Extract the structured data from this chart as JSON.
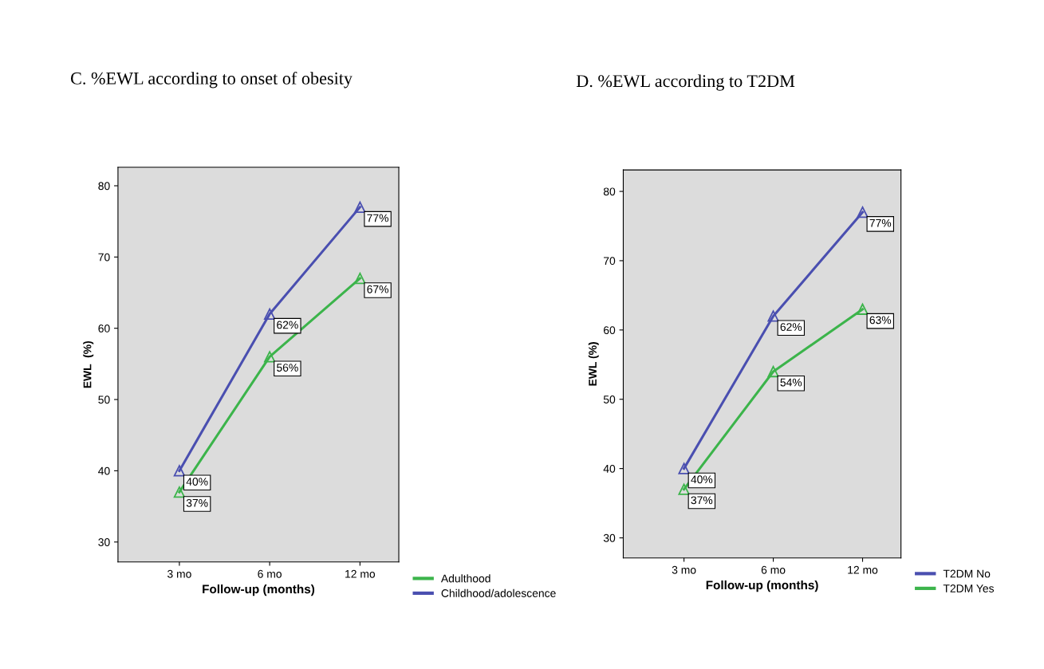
{
  "chart_data": [
    {
      "type": "line",
      "title": "C. %EWL according to onset of obesity",
      "xlabel": "Follow-up (months)",
      "ylabel": "EWL  (%)",
      "categories": [
        "3 mo",
        "6 mo",
        "12 mo"
      ],
      "ylim": [
        27.2,
        82.6
      ],
      "yticks": [
        30,
        40,
        50,
        60,
        70,
        80
      ],
      "marker": "triangle",
      "legend": "bottom right",
      "grid": false,
      "series": [
        {
          "name": "Adulthood",
          "color": "#3cb44b",
          "values": [
            37,
            56,
            67
          ],
          "value_labels": [
            "37%",
            "56%",
            "67%"
          ]
        },
        {
          "name": "Childhood/adolescence",
          "color": "#4a4fb0",
          "values": [
            40,
            62,
            77
          ],
          "value_labels": [
            "40%",
            "62%",
            "77%"
          ]
        }
      ]
    },
    {
      "type": "line",
      "title": "D. %EWL according to T2DM",
      "xlabel": "Follow-up (months)",
      "ylabel": "EWL (%)",
      "categories": [
        "3 mo",
        "6 mo",
        "12 mo"
      ],
      "ylim": [
        27.1,
        83.1
      ],
      "yticks": [
        30,
        40,
        50,
        60,
        70,
        80
      ],
      "marker": "triangle",
      "legend": "bottom right",
      "grid": false,
      "series": [
        {
          "name": "T2DM No",
          "color": "#4a4fb0",
          "values": [
            40,
            62,
            77
          ],
          "value_labels": [
            "40%",
            "62%",
            "77%"
          ]
        },
        {
          "name": "T2DM Yes",
          "color": "#3cb44b",
          "values": [
            37,
            54,
            63
          ],
          "value_labels": [
            "37%",
            "54%",
            "63%"
          ]
        }
      ]
    }
  ]
}
